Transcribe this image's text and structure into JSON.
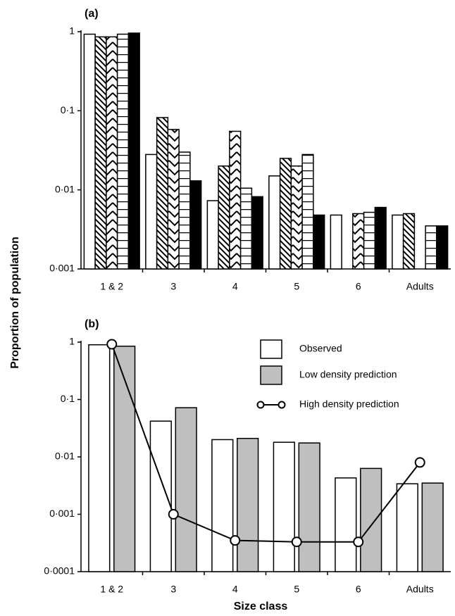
{
  "chart_data": [
    {
      "type": "bar",
      "title": "(a)",
      "ylabel": "Proportion of population",
      "log_scale": true,
      "ylim": [
        0.001,
        1
      ],
      "yticks": [
        {
          "value": 0.001,
          "label": "0·001"
        },
        {
          "value": 0.01,
          "label": "0·01"
        },
        {
          "value": 0.1,
          "label": "0·1"
        },
        1
      ],
      "categories": [
        "1 & 2",
        "3",
        "4",
        "5",
        "6",
        "Adults"
      ],
      "series": [
        {
          "color": "#ffffff",
          "pattern": "none",
          "values": [
            0.93,
            0.028,
            0.0073,
            0.015,
            0.0048,
            0.0048
          ]
        },
        {
          "color": "#ffffff",
          "pattern": "diagonal",
          "values": [
            0.86,
            0.082,
            0.02,
            0.025,
            null,
            0.005
          ]
        },
        {
          "color": "#ffffff",
          "pattern": "chevron",
          "values": [
            0.86,
            0.058,
            0.055,
            0.02,
            0.005,
            null
          ]
        },
        {
          "color": "#ffffff",
          "pattern": "horizontal",
          "values": [
            0.93,
            0.03,
            0.0105,
            0.028,
            0.0052,
            0.0035
          ]
        },
        {
          "color": "#000000",
          "pattern": "none",
          "values": [
            0.96,
            0.013,
            0.0082,
            0.0048,
            0.006,
            0.0035
          ]
        }
      ]
    },
    {
      "type": "bar",
      "title": "(b)",
      "xlabel": "Size class",
      "log_scale": true,
      "ylim": [
        0.0001,
        1
      ],
      "yticks": [
        {
          "value": 0.0001,
          "label": "0·0001"
        },
        {
          "value": 0.001,
          "label": "0·001"
        },
        {
          "value": 0.01,
          "label": "0·01"
        },
        {
          "value": 0.1,
          "label": "0·1"
        },
        1
      ],
      "categories": [
        "1 & 2",
        "3",
        "4",
        "5",
        "6",
        "Adults"
      ],
      "legend": "top-right",
      "series": [
        {
          "name": "Observed",
          "color": "#ffffff",
          "values": [
            0.9,
            0.042,
            0.02,
            0.018,
            0.0043,
            0.0034
          ]
        },
        {
          "name": "Low density prediction",
          "color": "#bfbfbf",
          "values": [
            0.85,
            0.072,
            0.021,
            0.0175,
            0.0063,
            0.0035
          ]
        },
        {
          "name": "High density prediction",
          "type": "line",
          "color": "#000000",
          "values": [
            0.92,
            0.001,
            0.00035,
            0.00033,
            0.00033,
            0.008
          ]
        }
      ]
    }
  ]
}
